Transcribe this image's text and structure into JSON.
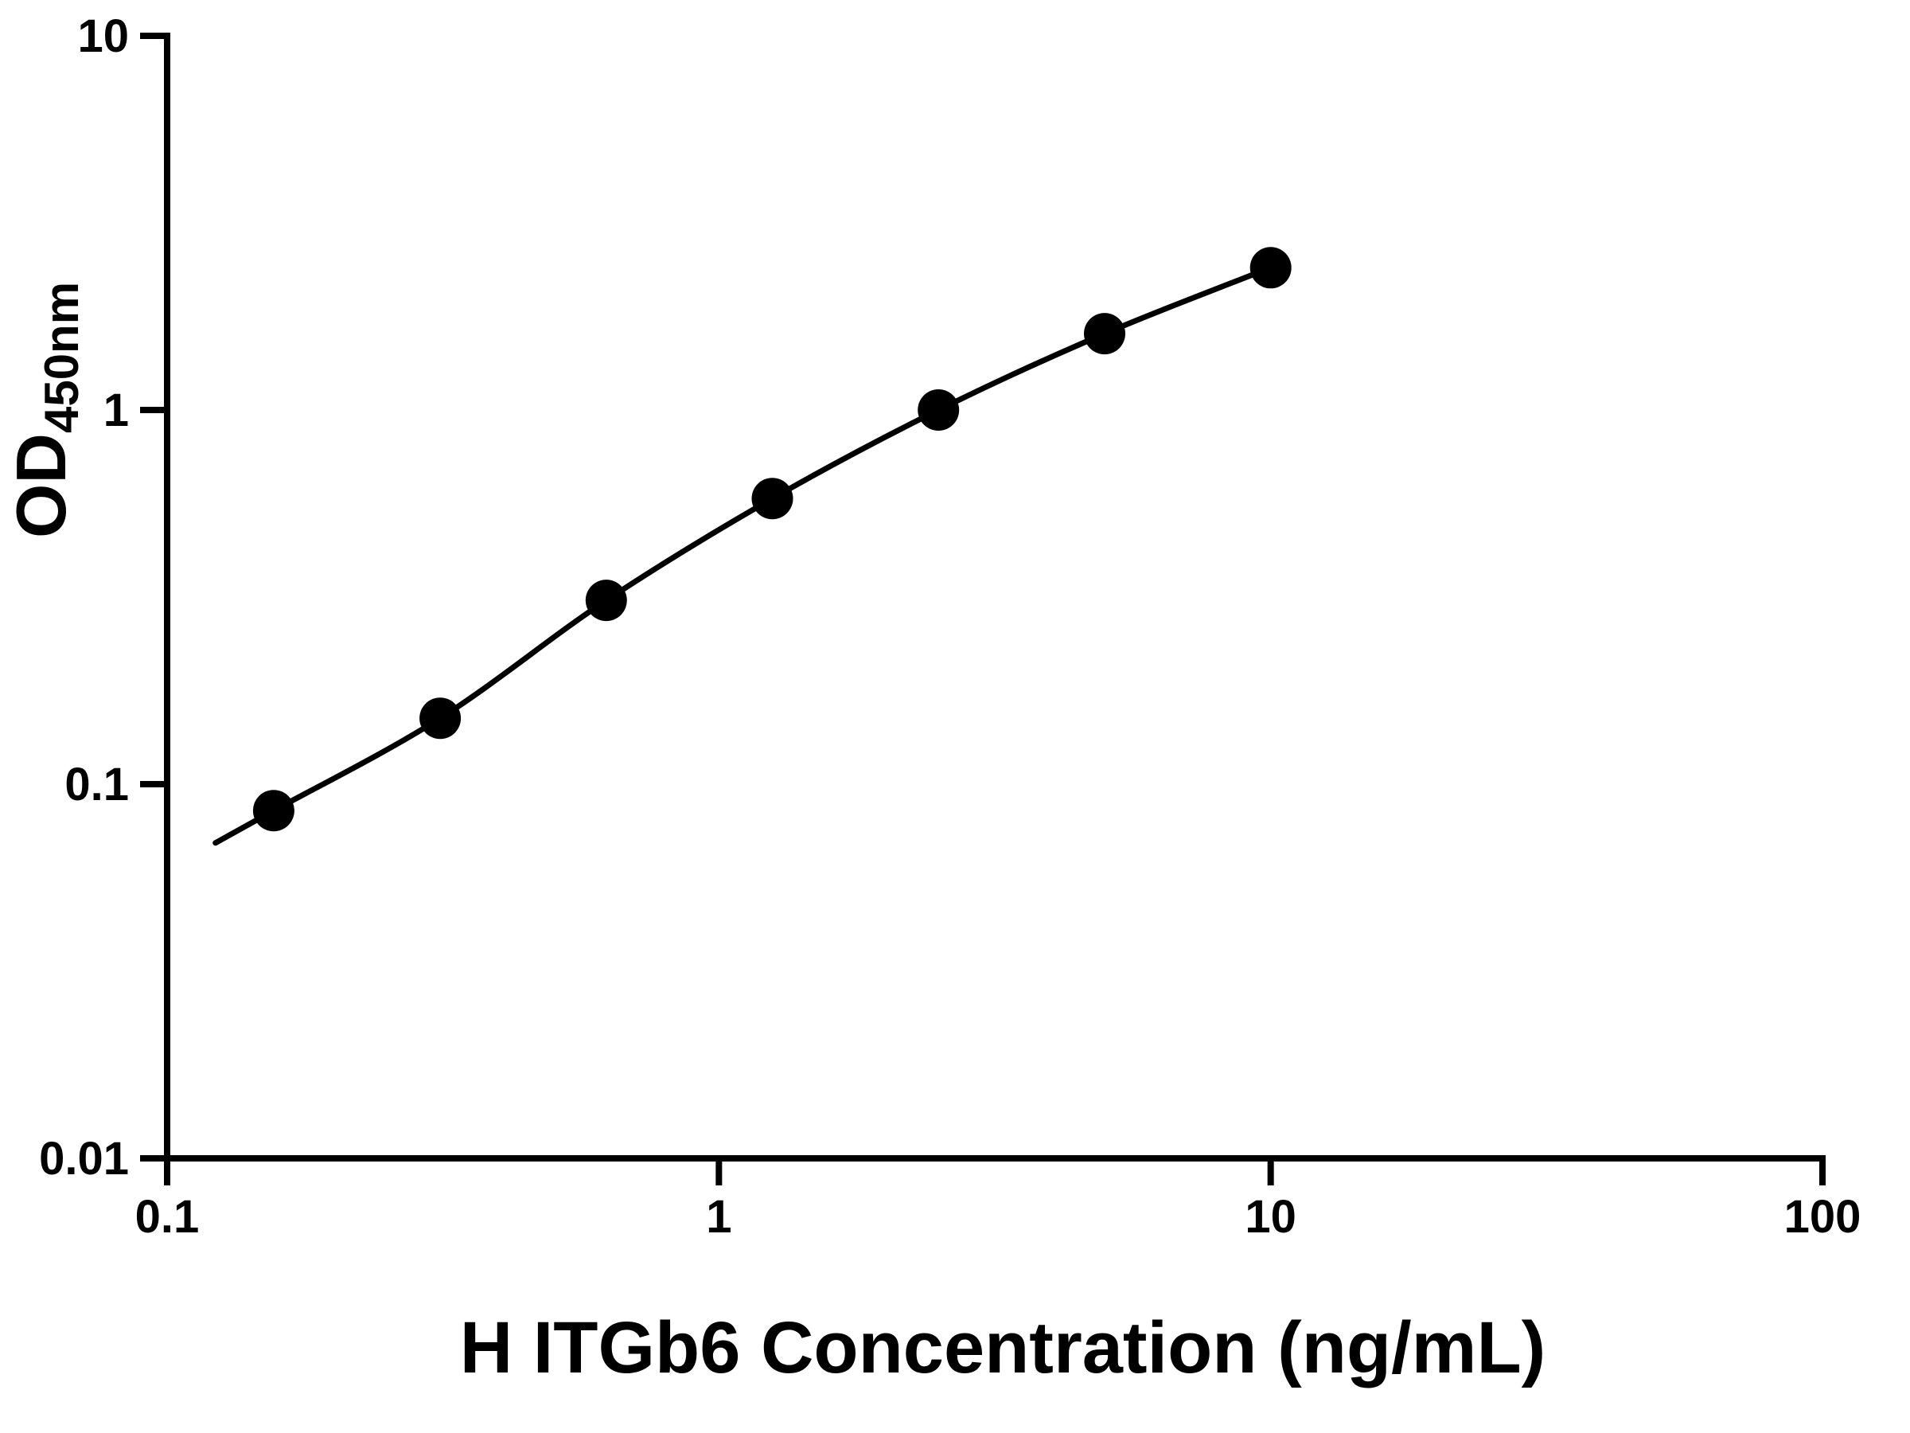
{
  "figure": {
    "background": "#ffffff",
    "foreground": "#000000"
  },
  "chart_data": {
    "type": "scatter",
    "title": "",
    "xlabel": "H ITGb6 Concentration (ng/mL)",
    "ylabel": "OD450nm",
    "ylabel_parts": {
      "main": "OD",
      "subscript": "450nm"
    },
    "x_scale": "log",
    "y_scale": "log",
    "xlim": [
      0.1,
      100
    ],
    "ylim": [
      0.01,
      10
    ],
    "grid": false,
    "legend": false,
    "x_ticks": [
      {
        "value": 0.1,
        "label": "0.1"
      },
      {
        "value": 1,
        "label": "1"
      },
      {
        "value": 10,
        "label": "10"
      },
      {
        "value": 100,
        "label": "100"
      }
    ],
    "y_ticks": [
      {
        "value": 0.01,
        "label": "0.01"
      },
      {
        "value": 0.1,
        "label": "0.1"
      },
      {
        "value": 1,
        "label": "1"
      },
      {
        "value": 10,
        "label": "10"
      }
    ],
    "points": {
      "x": [
        0.156,
        0.3125,
        0.625,
        1.25,
        2.5,
        5,
        10
      ],
      "y": [
        0.085,
        0.15,
        0.31,
        0.58,
        1.0,
        1.6,
        2.4
      ]
    },
    "curve_through_points": true,
    "marker": "circle",
    "marker_color": "#000000",
    "line_color": "#000000"
  }
}
